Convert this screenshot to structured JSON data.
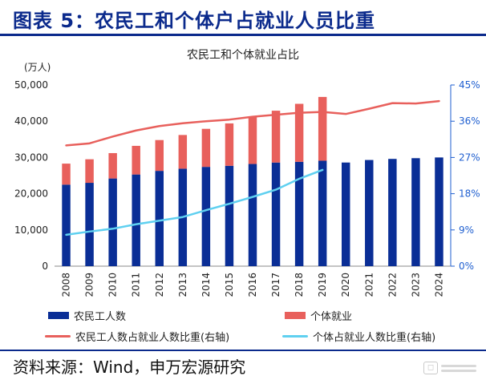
{
  "header": {
    "title": "图表 5：农民工和个体户占就业人员比重"
  },
  "footer": {
    "source": "资料来源：Wind，申万宏源研究"
  },
  "colors": {
    "title_blue": "#0b2a8c",
    "bar_migrant": "#0a2e96",
    "bar_individual": "#e8605c",
    "line_migrant_share": "#e8605c",
    "line_individual_share": "#5fd0f0",
    "right_axis": "#1f5fd0"
  },
  "chart_data": {
    "type": "bar",
    "title": "农民工和个体就业占比",
    "left_axis": {
      "unit_label": "(万人)",
      "ylim": [
        0,
        50000
      ],
      "ticks": [
        "50,000",
        "40,000",
        "30,000",
        "20,000",
        "10,000",
        "0"
      ]
    },
    "right_axis": {
      "ylim": [
        0,
        45
      ],
      "ticks": [
        "45%",
        "36%",
        "27%",
        "18%",
        "9%",
        "0%"
      ]
    },
    "categories": [
      "2008",
      "2009",
      "2010",
      "2011",
      "2012",
      "2013",
      "2014",
      "2015",
      "2016",
      "2017",
      "2018",
      "2019",
      "2020",
      "2021",
      "2022",
      "2023",
      "2024"
    ],
    "series": [
      {
        "name": "农民工人数",
        "kind": "bar",
        "axis": "left",
        "values": [
          22500,
          23000,
          24200,
          25300,
          26300,
          26900,
          27400,
          27700,
          28200,
          28600,
          28800,
          29100,
          28600,
          29300,
          29600,
          29800,
          30000
        ]
      },
      {
        "name": "个体就业",
        "kind": "stacked_bar",
        "axis": "left",
        "values": [
          5800,
          6500,
          7000,
          7900,
          8500,
          9300,
          10500,
          11700,
          13000,
          14300,
          16000,
          17600,
          null,
          null,
          null,
          null,
          null
        ]
      },
      {
        "name": "农民工人数占就业人数比重(右轴)",
        "kind": "line",
        "axis": "right",
        "values": [
          30.0,
          30.5,
          32.2,
          33.7,
          34.8,
          35.5,
          36.0,
          36.4,
          37.1,
          37.6,
          38.1,
          38.3,
          37.8,
          39.1,
          40.5,
          40.4,
          41.0
        ]
      },
      {
        "name": "个体占就业人数比重(右轴)",
        "kind": "line",
        "axis": "right",
        "values": [
          7.8,
          8.6,
          9.3,
          10.4,
          11.3,
          12.2,
          13.9,
          15.5,
          17.2,
          19.0,
          21.7,
          23.9,
          null,
          null,
          null,
          null,
          null
        ]
      }
    ],
    "legend_placement": "bottom",
    "grid": false
  }
}
